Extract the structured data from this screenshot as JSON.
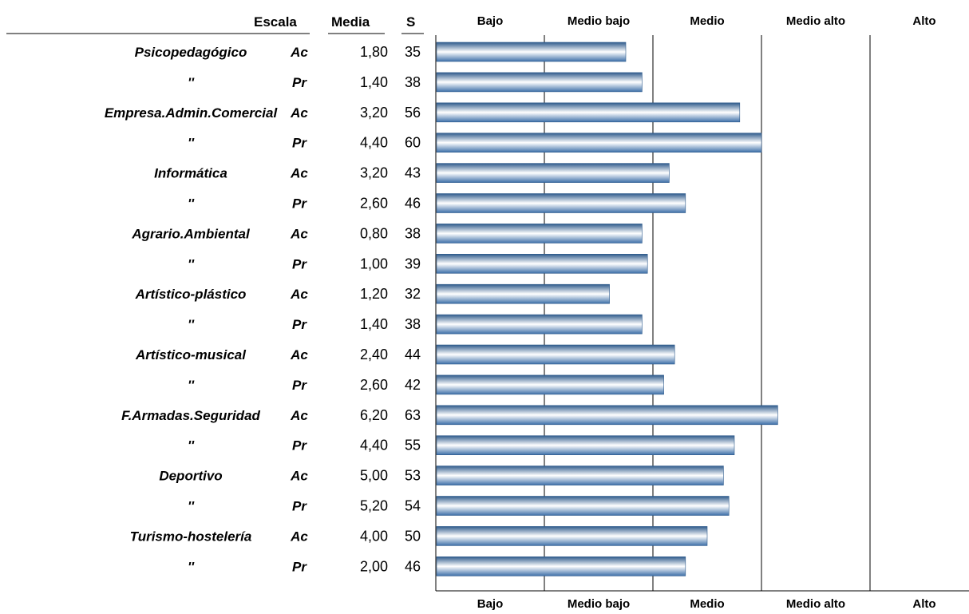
{
  "header": {
    "escala": "Escala",
    "media": "Media",
    "s": "S"
  },
  "colors": {
    "bar_edge": "#2f5b8c",
    "bar_mid": "#ffffff",
    "bar_dark": "#3d6fa8",
    "axis": "#000000"
  },
  "chart_data": {
    "type": "bar",
    "orientation": "horizontal",
    "x_range": [
      0,
      100
    ],
    "band_labels": [
      "Bajo",
      "Medio bajo",
      "Medio",
      "Medio alto",
      "Alto"
    ],
    "grid": true,
    "rows": [
      {
        "escala": "Psicopedagógico",
        "tipo": "Ac",
        "media": "1,80",
        "s": 35
      },
      {
        "escala": "''",
        "tipo": "Pr",
        "media": "1,40",
        "s": 38
      },
      {
        "escala": "Empresa.Admin.Comercial",
        "tipo": "Ac",
        "media": "3,20",
        "s": 56
      },
      {
        "escala": "''",
        "tipo": "Pr",
        "media": "4,40",
        "s": 60
      },
      {
        "escala": "Informática",
        "tipo": "Ac",
        "media": "3,20",
        "s": 43
      },
      {
        "escala": "''",
        "tipo": "Pr",
        "media": "2,60",
        "s": 46
      },
      {
        "escala": "Agrario.Ambiental",
        "tipo": "Ac",
        "media": "0,80",
        "s": 38
      },
      {
        "escala": "''",
        "tipo": "Pr",
        "media": "1,00",
        "s": 39
      },
      {
        "escala": "Artístico-plástico",
        "tipo": "Ac",
        "media": "1,20",
        "s": 32
      },
      {
        "escala": "''",
        "tipo": "Pr",
        "media": "1,40",
        "s": 38
      },
      {
        "escala": "Artístico-musical",
        "tipo": "Ac",
        "media": "2,40",
        "s": 44
      },
      {
        "escala": "''",
        "tipo": "Pr",
        "media": "2,60",
        "s": 42
      },
      {
        "escala": "F.Armadas.Seguridad",
        "tipo": "Ac",
        "media": "6,20",
        "s": 63
      },
      {
        "escala": "''",
        "tipo": "Pr",
        "media": "4,40",
        "s": 55
      },
      {
        "escala": "Deportivo",
        "tipo": "Ac",
        "media": "5,00",
        "s": 53
      },
      {
        "escala": "''",
        "tipo": "Pr",
        "media": "5,20",
        "s": 54
      },
      {
        "escala": "Turismo-hostelería",
        "tipo": "Ac",
        "media": "4,00",
        "s": 50
      },
      {
        "escala": "''",
        "tipo": "Pr",
        "media": "2,00",
        "s": 46
      }
    ]
  }
}
